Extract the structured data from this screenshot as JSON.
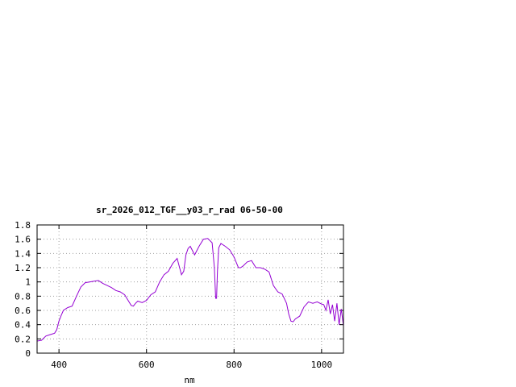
{
  "chart_data": {
    "type": "line",
    "title": "sr_2026_012_TGF__y03_r_rad 06-50-00",
    "xlabel": "nm",
    "ylabel": "",
    "xlim": [
      350,
      1050
    ],
    "ylim": [
      0,
      1.8
    ],
    "grid": true,
    "x_ticks": [
      400,
      600,
      800,
      1000
    ],
    "x_tick_labels": [
      "400",
      "600",
      "800",
      "1000"
    ],
    "y_ticks": [
      0,
      0.2,
      0.4,
      0.6,
      0.8,
      1,
      1.2,
      1.4,
      1.6,
      1.8
    ],
    "y_tick_labels": [
      "0",
      "0.2",
      "0.4",
      "0.6",
      "0.8",
      "1",
      "1.2",
      "1.4",
      "1.6",
      "1.8"
    ],
    "series": [
      {
        "color": "#9400d3",
        "x": [
          350,
          360,
          370,
          380,
          390,
          395,
          400,
          405,
          410,
          420,
          430,
          440,
          450,
          460,
          470,
          480,
          490,
          500,
          510,
          520,
          530,
          540,
          550,
          560,
          565,
          570,
          575,
          580,
          590,
          600,
          610,
          620,
          630,
          640,
          650,
          660,
          670,
          680,
          685,
          690,
          695,
          700,
          710,
          720,
          730,
          740,
          750,
          755,
          758,
          760,
          762,
          765,
          770,
          780,
          790,
          800,
          810,
          815,
          820,
          830,
          840,
          850,
          860,
          870,
          880,
          890,
          900,
          910,
          920,
          925,
          930,
          935,
          940,
          950,
          960,
          970,
          980,
          990,
          1000,
          1005,
          1010,
          1015,
          1020,
          1025,
          1030,
          1035,
          1040,
          1045,
          1050
        ],
        "y": [
          0.17,
          0.18,
          0.24,
          0.26,
          0.28,
          0.33,
          0.45,
          0.53,
          0.6,
          0.64,
          0.66,
          0.8,
          0.93,
          0.99,
          1.0,
          1.01,
          1.02,
          0.98,
          0.95,
          0.92,
          0.88,
          0.86,
          0.82,
          0.72,
          0.67,
          0.66,
          0.7,
          0.73,
          0.71,
          0.74,
          0.82,
          0.86,
          1.0,
          1.1,
          1.15,
          1.26,
          1.33,
          1.1,
          1.15,
          1.38,
          1.47,
          1.5,
          1.38,
          1.5,
          1.6,
          1.61,
          1.55,
          1.2,
          0.77,
          0.77,
          1.15,
          1.48,
          1.54,
          1.5,
          1.45,
          1.35,
          1.2,
          1.2,
          1.22,
          1.28,
          1.3,
          1.2,
          1.2,
          1.18,
          1.14,
          0.95,
          0.86,
          0.83,
          0.7,
          0.55,
          0.45,
          0.44,
          0.48,
          0.52,
          0.65,
          0.72,
          0.7,
          0.72,
          0.69,
          0.68,
          0.6,
          0.75,
          0.55,
          0.68,
          0.45,
          0.7,
          0.4,
          0.62,
          0.38
        ]
      }
    ]
  }
}
